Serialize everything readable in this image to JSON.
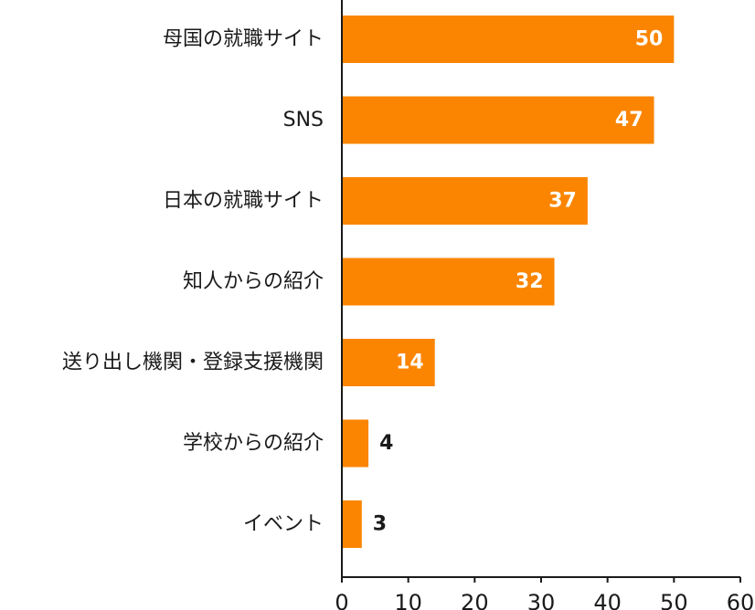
{
  "chart_data": {
    "type": "bar",
    "orientation": "horizontal",
    "title": "",
    "xlabel": "",
    "ylabel": "",
    "categories": [
      "母国の就職サイト",
      "SNS",
      "日本の就職サイト",
      "知人からの紹介",
      "送り出し機関・登録支援機関",
      "学校からの紹介",
      "イベント"
    ],
    "values": [
      50,
      47,
      37,
      32,
      14,
      4,
      3
    ],
    "xlim": [
      0,
      60
    ],
    "xticks": [
      0,
      10,
      20,
      30,
      40,
      50,
      60
    ],
    "grid": false,
    "legend": "none",
    "bar_color": "#fb8500",
    "label_inside_color": "#ffffff",
    "label_outside_color": "#1a1a1a"
  }
}
